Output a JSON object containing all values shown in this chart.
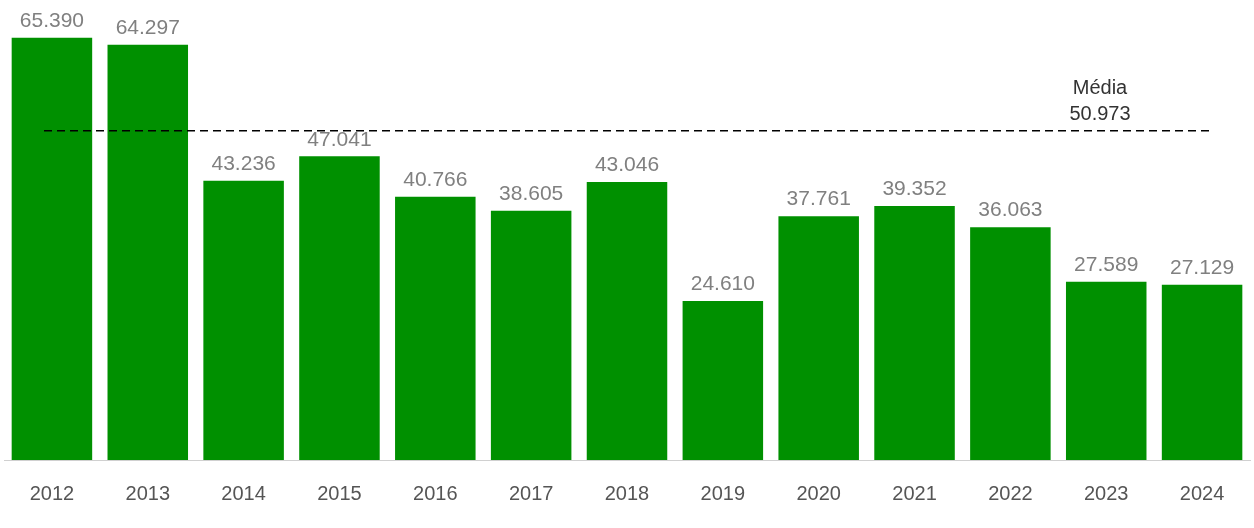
{
  "chart_data": {
    "type": "bar",
    "categories": [
      "2012",
      "2013",
      "2014",
      "2015",
      "2016",
      "2017",
      "2018",
      "2019",
      "2020",
      "2021",
      "2022",
      "2023",
      "2024"
    ],
    "values": [
      65390,
      64297,
      43236,
      47041,
      40766,
      38605,
      43046,
      24610,
      37761,
      39352,
      36063,
      27589,
      27129
    ],
    "value_labels": [
      "65.390",
      "64.297",
      "43.236",
      "47.041",
      "40.766",
      "38.605",
      "43.046",
      "24.610",
      "37.761",
      "39.352",
      "36.063",
      "27.589",
      "27.129"
    ],
    "color": "#009000",
    "ref_lines": [
      {
        "axis": "y",
        "value": 50973,
        "label": "Média\n50.973",
        "color": "#000000",
        "line_style": "dashed"
      }
    ],
    "tick_labels": "x",
    "grid": false,
    "legend": false
  }
}
